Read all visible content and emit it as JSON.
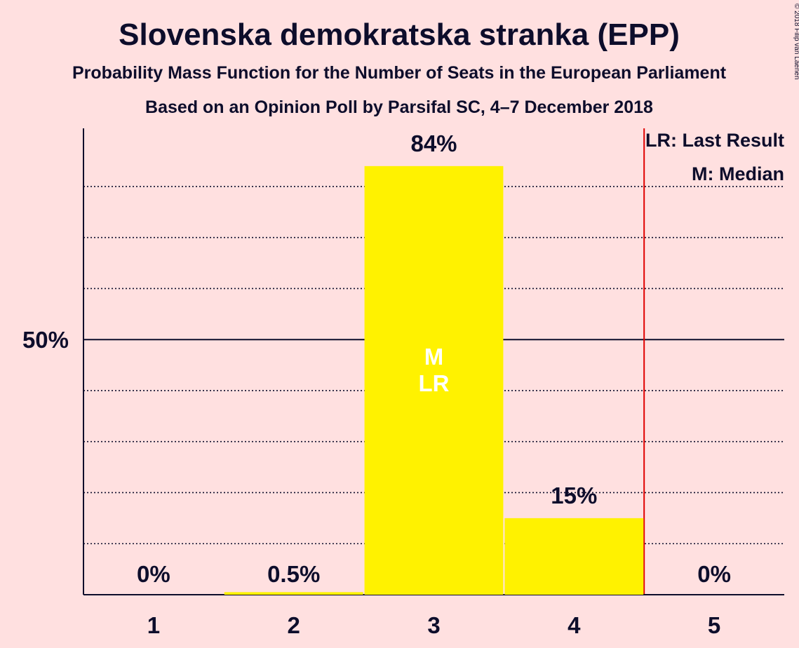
{
  "chart_data": {
    "type": "bar",
    "title": "Slovenska demokratska stranka (EPP)",
    "subtitle": "Probability Mass Function for the Number of Seats in the European Parliament",
    "subtitle2": "Based on an Opinion Poll by Parsifal SC, 4–7 December 2018",
    "copyright": "© 2018 Filip van Laenen",
    "categories": [
      "1",
      "2",
      "3",
      "4",
      "5"
    ],
    "values": [
      0,
      0.5,
      84,
      15,
      0
    ],
    "value_labels": [
      "0%",
      "0.5%",
      "84%",
      "15%",
      "0%"
    ],
    "ylim": [
      0,
      91.4
    ],
    "ytick_label": "50%",
    "ytick_value": 50,
    "gridlines": [
      10,
      20,
      30,
      40,
      60,
      70,
      80
    ],
    "last_result_line_after_category": 4.5,
    "bar_annotations": [
      {
        "category": "3",
        "lines": [
          "M",
          "LR"
        ]
      }
    ],
    "legend": [
      "LR: Last Result",
      "M: Median"
    ],
    "legend_position": "top-right",
    "colors": {
      "bar": "#FFF200",
      "background": "#FFE0E0",
      "text": "#0D0D2B",
      "last_result_line": "#E00000"
    }
  }
}
